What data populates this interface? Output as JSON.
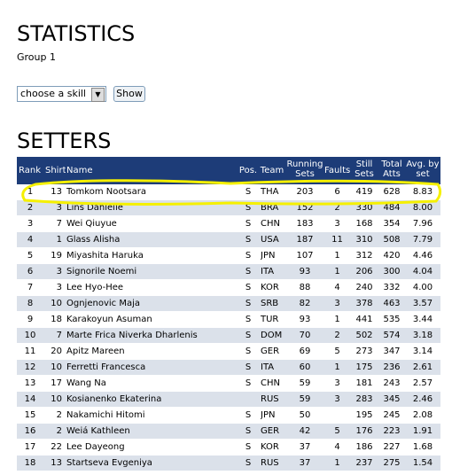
{
  "header": {
    "title": "STATISTICS",
    "subtitle": "Group 1"
  },
  "controls": {
    "select": "choose a skill",
    "button": "Show"
  },
  "section": {
    "title": "SETTERS"
  },
  "table": {
    "columns": [
      "Rank",
      "Shirt",
      "Name",
      "Pos.",
      "Team",
      "Running Sets",
      "Faults",
      "Still Sets",
      "Total Atts",
      "Avg. by set"
    ],
    "rows": [
      [
        "1",
        "13",
        "Tomkom Nootsara",
        "S",
        "THA",
        "203",
        "6",
        "419",
        "628",
        "8.83"
      ],
      [
        "2",
        "3",
        "Lins Danielle",
        "S",
        "BRA",
        "152",
        "2",
        "330",
        "484",
        "8.00"
      ],
      [
        "3",
        "7",
        "Wei Qiuyue",
        "S",
        "CHN",
        "183",
        "3",
        "168",
        "354",
        "7.96"
      ],
      [
        "4",
        "1",
        "Glass Alisha",
        "S",
        "USA",
        "187",
        "11",
        "310",
        "508",
        "7.79"
      ],
      [
        "5",
        "19",
        "Miyashita Haruka",
        "S",
        "JPN",
        "107",
        "1",
        "312",
        "420",
        "4.46"
      ],
      [
        "6",
        "3",
        "Signorile Noemi",
        "S",
        "ITA",
        "93",
        "1",
        "206",
        "300",
        "4.04"
      ],
      [
        "7",
        "3",
        "Lee Hyo-Hee",
        "S",
        "KOR",
        "88",
        "4",
        "240",
        "332",
        "4.00"
      ],
      [
        "8",
        "10",
        "Ognjenovic Maja",
        "S",
        "SRB",
        "82",
        "3",
        "378",
        "463",
        "3.57"
      ],
      [
        "9",
        "18",
        "Karakoyun Asuman",
        "S",
        "TUR",
        "93",
        "1",
        "441",
        "535",
        "3.44"
      ],
      [
        "10",
        "7",
        "Marte Frica Niverka Dharlenis",
        "S",
        "DOM",
        "70",
        "2",
        "502",
        "574",
        "3.18"
      ],
      [
        "11",
        "20",
        "Apitz Mareen",
        "S",
        "GER",
        "69",
        "5",
        "273",
        "347",
        "3.14"
      ],
      [
        "12",
        "10",
        "Ferretti Francesca",
        "S",
        "ITA",
        "60",
        "1",
        "175",
        "236",
        "2.61"
      ],
      [
        "13",
        "17",
        "Wang Na",
        "S",
        "CHN",
        "59",
        "3",
        "181",
        "243",
        "2.57"
      ],
      [
        "14",
        "10",
        "Kosianenko Ekaterina",
        null,
        "RUS",
        "59",
        "3",
        "283",
        "345",
        "2.46"
      ],
      [
        "15",
        "2",
        "Nakamichi Hitomi",
        "S",
        "JPN",
        "50",
        null,
        "195",
        "245",
        "2.08"
      ],
      [
        "16",
        "2",
        "Weiá Kathleen",
        "S",
        "GER",
        "42",
        "5",
        "176",
        "223",
        "1.91"
      ],
      [
        "17",
        "22",
        "Lee Dayeong",
        "S",
        "KOR",
        "37",
        "4",
        "186",
        "227",
        "1.68"
      ],
      [
        "18",
        "13",
        "Startseva Evgeniya",
        "S",
        "RUS",
        "37",
        "1",
        "237",
        "275",
        "1.54"
      ]
    ]
  }
}
